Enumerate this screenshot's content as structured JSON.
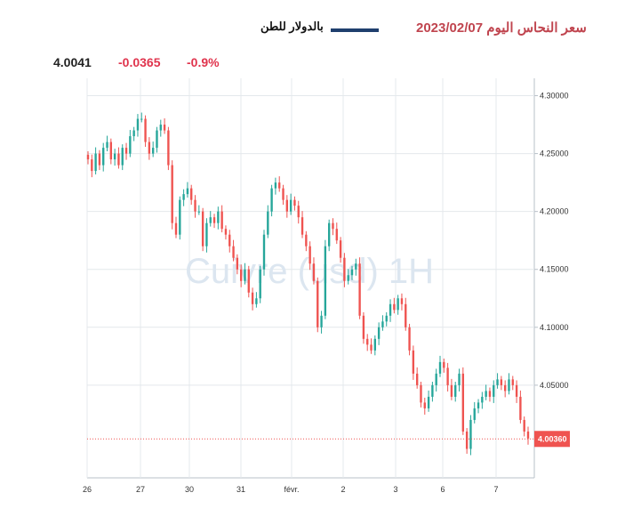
{
  "header": {
    "title": "سعر النحاس اليوم 2023/02/07",
    "legend_label": "بالدولار للطن",
    "legend_color": "#1f3f6e"
  },
  "quote": {
    "last": "4.0041",
    "change": "-0.0365",
    "change_pct": "-0.9%"
  },
  "chart_data": {
    "type": "candlestick",
    "watermark": "Cuivre (usd) 1H",
    "y_ticks": [
      "4.30000",
      "4.25000",
      "4.20000",
      "4.15000",
      "4.10000",
      "4.05000"
    ],
    "ylim": [
      3.97,
      4.315
    ],
    "x_ticks": [
      "26",
      "27",
      "30",
      "31",
      "févr.",
      "2",
      "3",
      "6",
      "7"
    ],
    "last_price_label": "4.00360",
    "last_price": 4.0036,
    "grid": true,
    "colors": {
      "up": "#26a69a",
      "down": "#ef5350",
      "last_price": "#ef5350"
    },
    "closes": [
      4.245,
      4.235,
      4.25,
      4.24,
      4.255,
      4.26,
      4.245,
      4.25,
      4.24,
      4.255,
      4.25,
      4.265,
      4.27,
      4.28,
      4.28,
      4.26,
      4.25,
      4.255,
      4.27,
      4.275,
      4.27,
      4.24,
      4.19,
      4.18,
      4.21,
      4.215,
      4.22,
      4.21,
      4.2,
      4.2,
      4.17,
      4.19,
      4.195,
      4.19,
      4.2,
      4.185,
      4.18,
      4.17,
      4.16,
      4.15,
      4.14,
      4.15,
      4.13,
      4.12,
      4.125,
      4.15,
      4.18,
      4.2,
      4.22,
      4.225,
      4.22,
      4.21,
      4.2,
      4.21,
      4.205,
      4.195,
      4.18,
      4.17,
      4.155,
      4.14,
      4.1,
      4.11,
      4.17,
      4.19,
      4.185,
      4.175,
      4.16,
      4.14,
      4.145,
      4.15,
      4.155,
      4.11,
      4.09,
      4.085,
      4.08,
      4.09,
      4.1,
      4.105,
      4.11,
      4.12,
      4.115,
      4.125,
      4.12,
      4.1,
      4.08,
      4.06,
      4.05,
      4.035,
      4.03,
      4.04,
      4.05,
      4.06,
      4.07,
      4.065,
      4.05,
      4.04,
      4.05,
      4.06,
      4.01,
      3.995,
      4.02,
      4.03,
      4.035,
      4.04,
      4.045,
      4.04,
      4.05,
      4.055,
      4.05,
      4.045,
      4.055,
      4.05,
      4.04,
      4.02,
      4.01,
      4.004
    ]
  }
}
